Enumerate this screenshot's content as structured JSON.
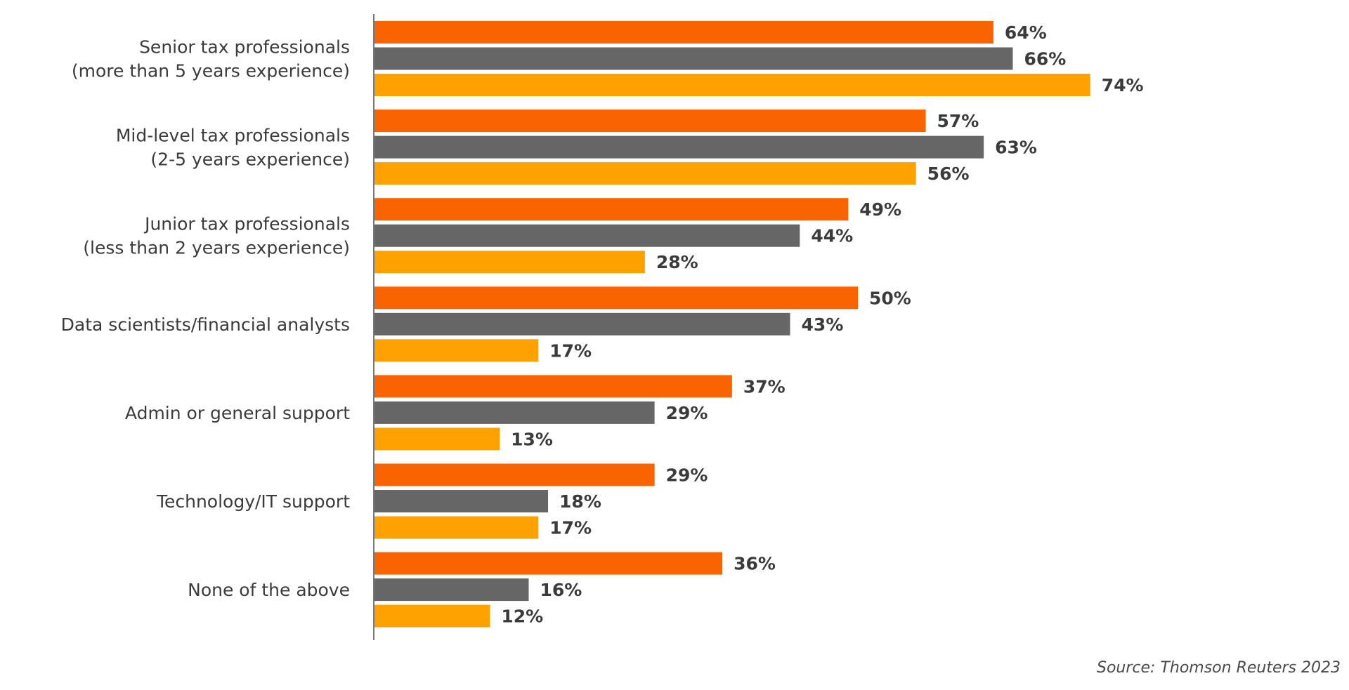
{
  "chart_data": {
    "type": "bar",
    "orientation": "horizontal",
    "categories": [
      [
        "Senior tax professionals",
        "(more than 5 years experience)"
      ],
      [
        "Mid-level tax professionals",
        "(2-5 years experience)"
      ],
      [
        "Junior tax professionals",
        "(less than 2 years experience)"
      ],
      [
        "Data scientists/financial analysts"
      ],
      [
        "Admin or general support"
      ],
      [
        "Technology/IT support"
      ],
      [
        "None of the above"
      ]
    ],
    "series": [
      {
        "color": "#fa6400",
        "values": [
          64,
          57,
          49,
          50,
          37,
          29,
          36
        ]
      },
      {
        "color": "#666666",
        "values": [
          66,
          63,
          44,
          43,
          29,
          18,
          16
        ]
      },
      {
        "color": "#ffa100",
        "values": [
          74,
          56,
          28,
          17,
          13,
          17,
          12
        ]
      }
    ],
    "value_suffix": "%",
    "xlim": [
      0,
      100
    ],
    "grid": false,
    "legend": "none"
  },
  "source": "Source: Thomson Reuters 2023"
}
